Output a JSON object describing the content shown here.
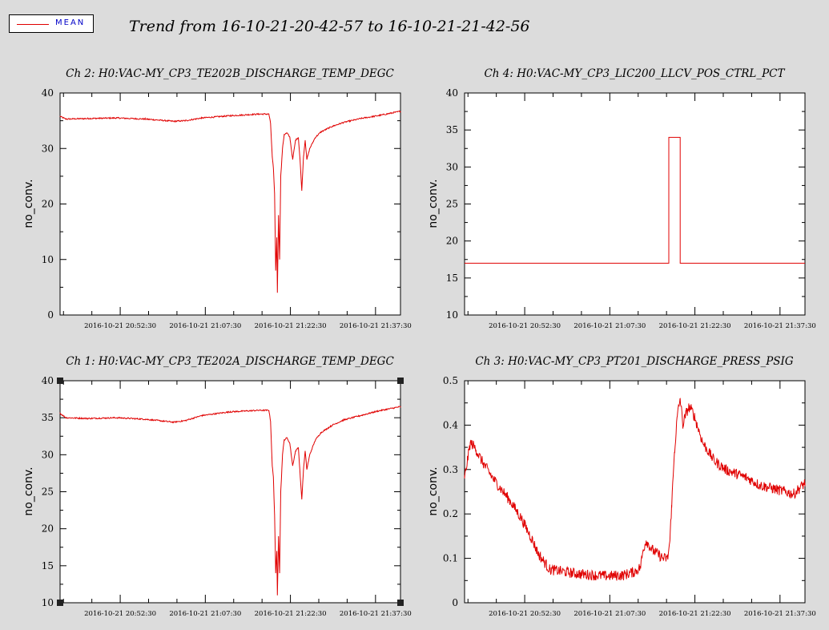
{
  "legend": {
    "label": "MEAN",
    "line_color": "#e00000"
  },
  "title": "Trend from 16-10-21-20-42-57 to 16-10-21-21-42-56",
  "chart_data": [
    {
      "id": "ch2",
      "type": "line",
      "title": "Ch 2: H0:VAC-MY_CP3_TE202B_DISCHARGE_TEMP_DEGC",
      "ylabel": "no_conv.",
      "xlim": [
        0,
        60
      ],
      "ylim": [
        0,
        40
      ],
      "yticks": [
        0,
        10,
        20,
        30,
        40
      ],
      "xtick_positions": [
        10.6,
        25.6,
        40.6,
        55.6
      ],
      "xtick_labels": [
        "2016-10-21 20:52:30",
        "2016-10-21 21:07:30",
        "2016-10-21 21:22:30",
        "2016-10-21 21:37:30"
      ],
      "series": [
        {
          "color": "#e00000",
          "noise": 0.12,
          "x": [
            0,
            1,
            5,
            10,
            15,
            20,
            22,
            25,
            30,
            35,
            36.8,
            37.1,
            37.4,
            37.6,
            37.8,
            38.0,
            38.2,
            38.3,
            38.5,
            38.7,
            38.9,
            39.2,
            39.5,
            40.0,
            40.5,
            41.0,
            41.5,
            42.0,
            42.3,
            42.6,
            42.9,
            43.2,
            43.5,
            44.0,
            45.0,
            46.0,
            48.0,
            50.0,
            53.0,
            56.0,
            60.0
          ],
          "y": [
            35.8,
            35.3,
            35.4,
            35.5,
            35.3,
            34.9,
            35.0,
            35.5,
            35.9,
            36.2,
            36.2,
            34.5,
            28.5,
            26.5,
            22.0,
            8.0,
            14.0,
            4.0,
            18.0,
            10.0,
            25.0,
            30.0,
            32.5,
            32.8,
            32.0,
            28.0,
            31.5,
            32.0,
            28.0,
            22.5,
            28.5,
            31.5,
            28.0,
            30.0,
            32.0,
            33.0,
            34.0,
            34.7,
            35.4,
            35.9,
            36.7
          ]
        }
      ]
    },
    {
      "id": "ch4",
      "type": "line",
      "title": "Ch 4: H0:VAC-MY_CP3_LIC200_LLCV_POS_CTRL_PCT",
      "ylabel": "no_conv.",
      "xlim": [
        0,
        60
      ],
      "ylim": [
        10,
        40
      ],
      "yticks": [
        10,
        15,
        20,
        25,
        30,
        35,
        40
      ],
      "xtick_positions": [
        10.6,
        25.6,
        40.6,
        55.6
      ],
      "xtick_labels": [
        "2016-10-21 20:52:30",
        "2016-10-21 21:07:30",
        "2016-10-21 21:22:30",
        "2016-10-21 21:37:30"
      ],
      "series": [
        {
          "color": "#e00000",
          "noise": 0,
          "x": [
            0,
            36.0,
            36.0,
            38.0,
            38.0,
            60.0
          ],
          "y": [
            17,
            17,
            34,
            34,
            17,
            17
          ]
        }
      ]
    },
    {
      "id": "ch1",
      "type": "line",
      "title": "Ch 1: H0:VAC-MY_CP3_TE202A_DISCHARGE_TEMP_DEGC",
      "ylabel": "no_conv.",
      "xlim": [
        0,
        60
      ],
      "ylim": [
        10,
        40
      ],
      "yticks": [
        10,
        15,
        20,
        25,
        30,
        35,
        40
      ],
      "xtick_positions": [
        10.6,
        25.6,
        40.6,
        55.6
      ],
      "xtick_labels": [
        "2016-10-21 20:52:30",
        "2016-10-21 21:07:30",
        "2016-10-21 21:22:30",
        "2016-10-21 21:37:30"
      ],
      "series": [
        {
          "color": "#e00000",
          "noise": 0.12,
          "x": [
            0,
            1,
            5,
            10,
            15,
            20,
            22,
            25,
            30,
            35,
            36.8,
            37.1,
            37.4,
            37.6,
            37.8,
            38.0,
            38.2,
            38.3,
            38.5,
            38.7,
            38.9,
            39.2,
            39.5,
            40.0,
            40.5,
            41.0,
            41.5,
            42.0,
            42.3,
            42.6,
            42.9,
            43.2,
            43.5,
            44.0,
            45.0,
            46.0,
            48.0,
            50.0,
            53.0,
            56.0,
            60.0
          ],
          "y": [
            35.6,
            35.0,
            34.9,
            35.0,
            34.8,
            34.4,
            34.6,
            35.3,
            35.8,
            36.0,
            36.0,
            34.5,
            28.5,
            27.0,
            22.0,
            14.0,
            17.0,
            11.0,
            19.0,
            14.0,
            25.0,
            30.0,
            32.0,
            32.3,
            31.5,
            28.5,
            30.5,
            31.0,
            27.5,
            24.0,
            28.0,
            30.5,
            28.0,
            30.0,
            32.0,
            33.0,
            34.0,
            34.7,
            35.3,
            35.9,
            36.5
          ]
        }
      ]
    },
    {
      "id": "ch3",
      "type": "line",
      "title": "Ch 3: H0:VAC-MY_CP3_PT201_DISCHARGE_PRESS_PSIG",
      "ylabel": "no_conv.",
      "xlim": [
        0,
        60
      ],
      "ylim": [
        0,
        0.5
      ],
      "yticks": [
        0,
        0.1,
        0.2,
        0.3,
        0.4,
        0.5
      ],
      "xtick_positions": [
        10.6,
        25.6,
        40.6,
        55.6
      ],
      "xtick_labels": [
        "2016-10-21 20:52:30",
        "2016-10-21 21:07:30",
        "2016-10-21 21:22:30",
        "2016-10-21 21:37:30"
      ],
      "series": [
        {
          "color": "#e00000",
          "noise": 0.012,
          "x": [
            0,
            0.5,
            1,
            1.5,
            2,
            3,
            5,
            8,
            10,
            12,
            13,
            15,
            20,
            25,
            28,
            30,
            31,
            31.5,
            32,
            33,
            35,
            35.8,
            36.2,
            36.5,
            37,
            37.5,
            38,
            38.5,
            39,
            39.5,
            40,
            40.5,
            41,
            42,
            44,
            46,
            48,
            50,
            52,
            55,
            58,
            60
          ],
          "y": [
            0.28,
            0.32,
            0.36,
            0.355,
            0.345,
            0.32,
            0.28,
            0.23,
            0.19,
            0.14,
            0.11,
            0.075,
            0.065,
            0.06,
            0.062,
            0.07,
            0.08,
            0.12,
            0.14,
            0.12,
            0.1,
            0.1,
            0.14,
            0.22,
            0.34,
            0.42,
            0.46,
            0.4,
            0.425,
            0.44,
            0.435,
            0.42,
            0.4,
            0.36,
            0.32,
            0.3,
            0.29,
            0.28,
            0.265,
            0.255,
            0.245,
            0.27
          ]
        }
      ]
    }
  ]
}
